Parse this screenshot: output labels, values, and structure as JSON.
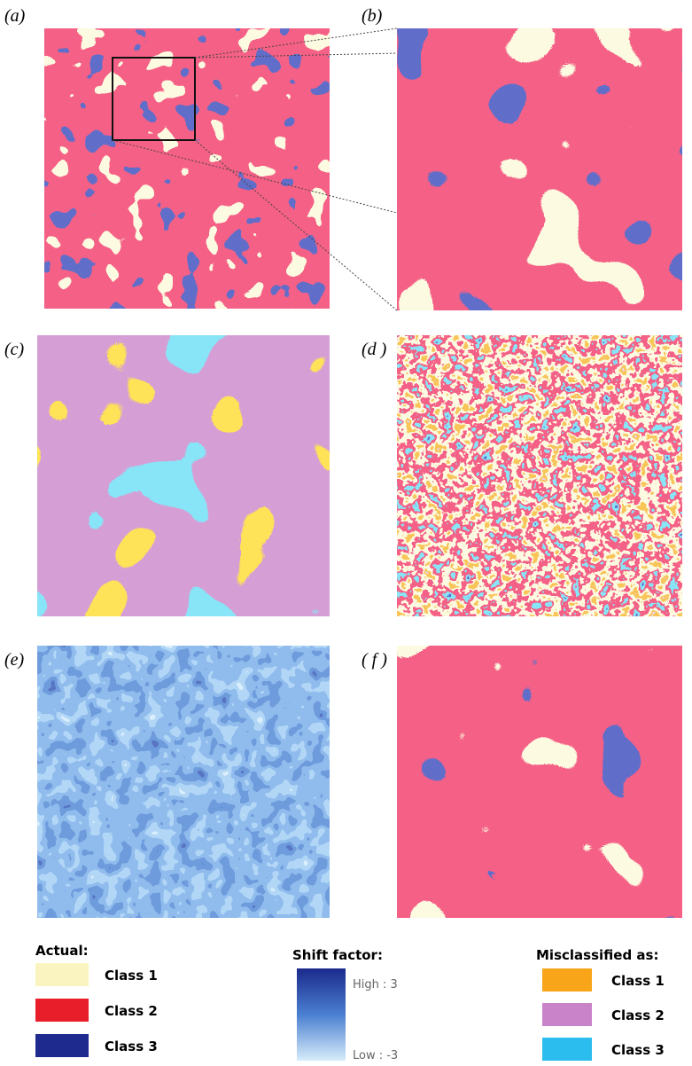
{
  "panels": {
    "labels": [
      "(a)",
      "(b)",
      "(c)",
      "(d )",
      "(e)",
      "( f )"
    ]
  },
  "legend": {
    "actual": {
      "title": "Actual:",
      "classes": [
        "Class 1",
        "Class 2",
        "Class 3"
      ]
    },
    "shift": {
      "title": "Shift factor:",
      "high": "High : 3",
      "low": "Low : -3"
    },
    "misclassified": {
      "title": "Misclassified as:",
      "classes": [
        "Class 1",
        "Class 2",
        "Class 3"
      ]
    }
  }
}
